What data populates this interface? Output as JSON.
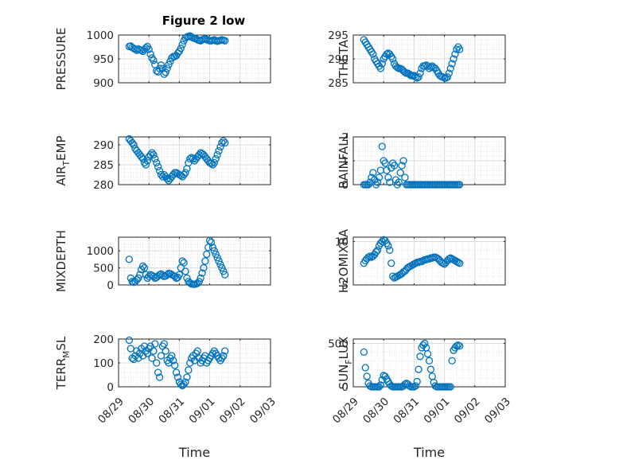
{
  "figure": {
    "title": "Figure 2 low",
    "marker_color": "#0072BD"
  },
  "chart_data": [
    {
      "type": "scatter",
      "ylabel": "PRESSURE",
      "ylim": [
        900,
        1000
      ],
      "yticks": [
        900,
        950,
        1000
      ],
      "yticklabels": [
        "900",
        "950",
        "1000"
      ],
      "grid": true,
      "xlim": [
        "08/29",
        "09/03"
      ],
      "x": [
        0.35,
        0.4,
        0.45,
        0.5,
        0.55,
        0.6,
        0.65,
        0.7,
        0.75,
        0.8,
        0.85,
        0.9,
        0.95,
        1.0,
        1.05,
        1.1,
        1.15,
        1.2,
        1.25,
        1.3,
        1.35,
        1.4,
        1.45,
        1.5,
        1.55,
        1.6,
        1.65,
        1.7,
        1.75,
        1.8,
        1.85,
        1.9,
        1.95,
        2.0,
        2.05,
        2.1,
        2.15,
        2.2,
        2.25,
        2.3,
        2.35,
        2.4,
        2.45,
        2.5,
        2.55,
        2.6,
        2.65,
        2.7,
        2.75,
        2.8,
        2.85,
        2.9,
        2.95,
        3.0,
        3.05,
        3.1,
        3.15,
        3.2,
        3.25,
        3.3,
        3.35,
        3.4,
        3.45,
        3.5
      ],
      "y": [
        976,
        977,
        974,
        972,
        970,
        968,
        971,
        969,
        968,
        966,
        970,
        973,
        976,
        970,
        960,
        952,
        947,
        938,
        925,
        923,
        930,
        937,
        930,
        918,
        922,
        930,
        938,
        945,
        952,
        955,
        955,
        957,
        962,
        966,
        972,
        980,
        988,
        994,
        996,
        997,
        998,
        996,
        994,
        993,
        992,
        990,
        989,
        988,
        990,
        991,
        992,
        991,
        989,
        988,
        988,
        989,
        990,
        988,
        987,
        988,
        989,
        990,
        989,
        988
      ]
    },
    {
      "type": "scatter",
      "ylabel": "THETA",
      "ylim": [
        285,
        295
      ],
      "yticks": [
        285,
        290,
        295
      ],
      "yticklabels": [
        "285",
        "290",
        "295"
      ],
      "grid": true,
      "xlim": [
        "08/29",
        "09/03"
      ],
      "x": [
        0.35,
        0.4,
        0.45,
        0.5,
        0.55,
        0.6,
        0.65,
        0.7,
        0.75,
        0.8,
        0.85,
        0.9,
        0.95,
        1.0,
        1.05,
        1.1,
        1.15,
        1.2,
        1.25,
        1.3,
        1.35,
        1.4,
        1.45,
        1.5,
        1.55,
        1.6,
        1.65,
        1.7,
        1.75,
        1.8,
        1.85,
        1.9,
        1.95,
        2.0,
        2.05,
        2.1,
        2.15,
        2.2,
        2.25,
        2.3,
        2.35,
        2.4,
        2.45,
        2.5,
        2.55,
        2.6,
        2.65,
        2.7,
        2.75,
        2.8,
        2.85,
        2.9,
        2.95,
        3.0,
        3.05,
        3.1,
        3.15,
        3.2,
        3.25,
        3.3,
        3.35,
        3.4,
        3.45,
        3.5
      ],
      "y": [
        294.0,
        293.5,
        293.0,
        292.5,
        292.0,
        291.5,
        291.0,
        290.0,
        289.5,
        289.0,
        288.5,
        288.0,
        289.0,
        290.0,
        290.5,
        291.0,
        291.2,
        291.0,
        290.5,
        290.0,
        289.0,
        288.5,
        288.2,
        288.0,
        288.0,
        287.8,
        287.5,
        287.2,
        287.0,
        287.0,
        286.8,
        286.5,
        286.5,
        286.5,
        286.2,
        286.0,
        286.2,
        287.0,
        288.0,
        288.5,
        288.5,
        288.7,
        288.5,
        288.0,
        288.3,
        288.5,
        288.2,
        288.0,
        287.5,
        287.0,
        286.5,
        286.3,
        286.2,
        286.0,
        286.0,
        286.2,
        287.0,
        288.0,
        289.0,
        290.0,
        291.0,
        292.0,
        292.5,
        292.0
      ]
    },
    {
      "type": "scatter",
      "ylabel": "AIR_TEMP",
      "ylim": [
        280,
        292
      ],
      "yticks": [
        280,
        285,
        290
      ],
      "yticklabels": [
        "280",
        "285",
        "290"
      ],
      "grid": true,
      "xlim": [
        "08/29",
        "09/03"
      ],
      "x": [
        0.35,
        0.4,
        0.45,
        0.5,
        0.55,
        0.6,
        0.65,
        0.7,
        0.75,
        0.8,
        0.85,
        0.9,
        0.95,
        1.0,
        1.05,
        1.1,
        1.15,
        1.2,
        1.25,
        1.3,
        1.35,
        1.4,
        1.45,
        1.5,
        1.55,
        1.6,
        1.65,
        1.7,
        1.75,
        1.8,
        1.85,
        1.9,
        1.95,
        2.0,
        2.05,
        2.1,
        2.15,
        2.2,
        2.25,
        2.3,
        2.35,
        2.4,
        2.45,
        2.5,
        2.55,
        2.6,
        2.65,
        2.7,
        2.75,
        2.8,
        2.85,
        2.9,
        2.95,
        3.0,
        3.05,
        3.1,
        3.15,
        3.2,
        3.25,
        3.3,
        3.35,
        3.4,
        3.45,
        3.5
      ],
      "y": [
        291.5,
        291.0,
        290.5,
        290.0,
        289.0,
        288.5,
        288.0,
        287.5,
        287.0,
        286.5,
        285.5,
        285.0,
        286.0,
        287.0,
        287.5,
        288.0,
        287.5,
        286.5,
        285.5,
        284.5,
        283.5,
        282.5,
        282.0,
        282.5,
        282.0,
        281.5,
        281.0,
        281.5,
        282.0,
        282.5,
        283.0,
        283.0,
        282.8,
        282.5,
        282.3,
        282.0,
        282.5,
        283.0,
        284.0,
        285.5,
        286.5,
        286.8,
        286.5,
        286.0,
        286.5,
        287.0,
        287.5,
        288.0,
        287.8,
        287.5,
        287.0,
        286.5,
        286.0,
        285.5,
        285.3,
        285.0,
        285.5,
        286.5,
        287.5,
        288.5,
        289.5,
        290.5,
        291.0,
        290.5
      ]
    },
    {
      "type": "scatter",
      "ylabel": "RAINFALL",
      "ylim": [
        0,
        2
      ],
      "yticks": [
        0,
        1,
        2
      ],
      "yticklabels": [
        "0",
        "1",
        "2"
      ],
      "grid": true,
      "xlim": [
        "08/29",
        "09/03"
      ],
      "x": [
        0.35,
        0.4,
        0.45,
        0.5,
        0.55,
        0.6,
        0.65,
        0.7,
        0.75,
        0.8,
        0.85,
        0.9,
        0.95,
        1.0,
        1.05,
        1.1,
        1.15,
        1.2,
        1.25,
        1.3,
        1.35,
        1.4,
        1.45,
        1.5,
        1.55,
        1.6,
        1.65,
        1.7,
        1.75,
        1.8,
        1.85,
        1.9,
        1.95,
        2.0,
        2.05,
        2.1,
        2.15,
        2.2,
        2.25,
        2.3,
        2.35,
        2.4,
        2.45,
        2.5,
        2.55,
        2.6,
        2.65,
        2.7,
        2.75,
        2.8,
        2.85,
        2.9,
        2.95,
        3.0,
        3.05,
        3.1,
        3.15,
        3.2,
        3.25,
        3.3,
        3.35,
        3.4,
        3.45,
        3.5
      ],
      "y": [
        0,
        0,
        0,
        0,
        0.1,
        0.3,
        0.5,
        0.2,
        0,
        0.1,
        0.3,
        0.6,
        1.6,
        1.0,
        0.9,
        0.6,
        0.3,
        0.1,
        0.7,
        0.9,
        0.8,
        0.2,
        0,
        0.1,
        0.5,
        0.8,
        1.0,
        0.3,
        0,
        0,
        0,
        0,
        0,
        0,
        0,
        0,
        0,
        0,
        0,
        0,
        0,
        0,
        0,
        0,
        0,
        0,
        0,
        0,
        0,
        0,
        0,
        0,
        0,
        0,
        0,
        0,
        0,
        0,
        0,
        0,
        0,
        0,
        0,
        0
      ]
    },
    {
      "type": "scatter",
      "ylabel": "MIXDEPTH",
      "ylim": [
        0,
        1400
      ],
      "yticks": [
        0,
        500,
        1000
      ],
      "yticklabels": [
        "0",
        "500",
        "1000"
      ],
      "grid": true,
      "xlim": [
        "08/29",
        "09/03"
      ],
      "x": [
        0.35,
        0.4,
        0.45,
        0.5,
        0.55,
        0.6,
        0.65,
        0.7,
        0.75,
        0.8,
        0.85,
        0.9,
        0.95,
        1.0,
        1.05,
        1.1,
        1.15,
        1.2,
        1.25,
        1.3,
        1.35,
        1.4,
        1.45,
        1.5,
        1.55,
        1.6,
        1.65,
        1.7,
        1.75,
        1.8,
        1.85,
        1.9,
        1.95,
        2.0,
        2.05,
        2.1,
        2.15,
        2.2,
        2.25,
        2.3,
        2.35,
        2.4,
        2.45,
        2.5,
        2.55,
        2.6,
        2.65,
        2.7,
        2.75,
        2.8,
        2.85,
        2.9,
        2.95,
        3.0,
        3.05,
        3.1,
        3.15,
        3.2,
        3.25,
        3.3,
        3.35,
        3.4,
        3.45,
        3.5
      ],
      "y": [
        750,
        200,
        100,
        80,
        100,
        150,
        200,
        300,
        450,
        550,
        500,
        300,
        200,
        250,
        300,
        280,
        250,
        200,
        220,
        260,
        300,
        320,
        280,
        250,
        260,
        300,
        340,
        330,
        300,
        280,
        250,
        200,
        220,
        300,
        500,
        700,
        650,
        400,
        200,
        100,
        60,
        30,
        20,
        20,
        30,
        50,
        100,
        200,
        350,
        500,
        700,
        900,
        1100,
        1300,
        1250,
        1100,
        1000,
        900,
        800,
        700,
        600,
        500,
        400,
        300
      ]
    },
    {
      "type": "scatter",
      "ylabel": "H2OMIXRA",
      "ylim": [
        5,
        10.5
      ],
      "yticks": [
        5,
        10
      ],
      "yticklabels": [
        "5",
        "10"
      ],
      "grid": true,
      "xlim": [
        "08/29",
        "09/03"
      ],
      "x": [
        0.35,
        0.4,
        0.45,
        0.5,
        0.55,
        0.6,
        0.65,
        0.7,
        0.75,
        0.8,
        0.85,
        0.9,
        0.95,
        1.0,
        1.05,
        1.1,
        1.15,
        1.2,
        1.25,
        1.3,
        1.35,
        1.4,
        1.45,
        1.5,
        1.55,
        1.6,
        1.65,
        1.7,
        1.75,
        1.8,
        1.85,
        1.9,
        1.95,
        2.0,
        2.05,
        2.1,
        2.15,
        2.2,
        2.25,
        2.3,
        2.35,
        2.4,
        2.45,
        2.5,
        2.55,
        2.6,
        2.65,
        2.7,
        2.75,
        2.8,
        2.85,
        2.9,
        2.95,
        3.0,
        3.05,
        3.1,
        3.15,
        3.2,
        3.25,
        3.3,
        3.35,
        3.4,
        3.45,
        3.5
      ],
      "y": [
        7.5,
        7.8,
        8.0,
        8.2,
        8.3,
        8.2,
        8.3,
        8.5,
        8.8,
        9.0,
        9.5,
        9.8,
        10.0,
        10.2,
        10.1,
        9.8,
        9.5,
        9.0,
        7.5,
        6.0,
        5.8,
        5.9,
        6.0,
        6.1,
        6.2,
        6.3,
        6.5,
        6.6,
        6.8,
        7.0,
        7.1,
        7.2,
        7.3,
        7.4,
        7.5,
        7.6,
        7.6,
        7.7,
        7.7,
        7.8,
        7.9,
        7.9,
        8.0,
        8.0,
        8.1,
        8.1,
        8.2,
        8.2,
        8.1,
        8.0,
        7.8,
        7.6,
        7.5,
        7.4,
        7.6,
        7.8,
        8.0,
        8.1,
        8.0,
        7.9,
        7.8,
        7.7,
        7.6,
        7.5
      ]
    },
    {
      "type": "scatter",
      "ylabel": "TERR_MSL",
      "ylim": [
        0,
        200
      ],
      "yticks": [
        0,
        100,
        200
      ],
      "yticklabels": [
        "0",
        "100",
        "200"
      ],
      "grid": true,
      "xlim": [
        "08/29",
        "09/03"
      ],
      "x": [
        0.35,
        0.4,
        0.45,
        0.5,
        0.55,
        0.6,
        0.65,
        0.7,
        0.75,
        0.8,
        0.85,
        0.9,
        0.95,
        1.0,
        1.05,
        1.1,
        1.15,
        1.2,
        1.25,
        1.3,
        1.35,
        1.4,
        1.45,
        1.5,
        1.55,
        1.6,
        1.65,
        1.7,
        1.75,
        1.8,
        1.85,
        1.9,
        1.95,
        2.0,
        2.05,
        2.1,
        2.15,
        2.2,
        2.25,
        2.3,
        2.35,
        2.4,
        2.45,
        2.5,
        2.55,
        2.6,
        2.65,
        2.7,
        2.75,
        2.8,
        2.85,
        2.9,
        2.95,
        3.0,
        3.05,
        3.1,
        3.15,
        3.2,
        3.25,
        3.3,
        3.35,
        3.4,
        3.45,
        3.5
      ],
      "y": [
        195,
        160,
        120,
        115,
        130,
        150,
        120,
        140,
        160,
        130,
        170,
        150,
        140,
        160,
        170,
        120,
        150,
        180,
        100,
        60,
        40,
        130,
        170,
        180,
        150,
        110,
        100,
        120,
        130,
        110,
        90,
        60,
        40,
        20,
        10,
        5,
        10,
        20,
        40,
        70,
        100,
        120,
        130,
        110,
        140,
        150,
        120,
        100,
        110,
        120,
        130,
        100,
        110,
        120,
        130,
        140,
        150,
        140,
        130,
        120,
        110,
        120,
        130,
        150
      ]
    },
    {
      "type": "scatter",
      "ylabel": "SUN_FLUX",
      "ylim": [
        0,
        550
      ],
      "yticks": [
        0,
        500
      ],
      "yticklabels": [
        "0",
        "500"
      ],
      "grid": true,
      "xlim": [
        "08/29",
        "09/03"
      ],
      "x": [
        0.35,
        0.4,
        0.45,
        0.5,
        0.55,
        0.6,
        0.65,
        0.7,
        0.75,
        0.8,
        0.85,
        0.9,
        0.95,
        1.0,
        1.05,
        1.1,
        1.15,
        1.2,
        1.25,
        1.3,
        1.35,
        1.4,
        1.45,
        1.5,
        1.55,
        1.6,
        1.65,
        1.7,
        1.75,
        1.8,
        1.85,
        1.9,
        1.95,
        2.0,
        2.05,
        2.1,
        2.15,
        2.2,
        2.25,
        2.3,
        2.35,
        2.4,
        2.45,
        2.5,
        2.55,
        2.6,
        2.65,
        2.7,
        2.75,
        2.8,
        2.85,
        2.9,
        2.95,
        3.0,
        3.05,
        3.1,
        3.15,
        3.2,
        3.25,
        3.3,
        3.35,
        3.4,
        3.45,
        3.5
      ],
      "y": [
        400,
        220,
        120,
        40,
        10,
        0,
        0,
        0,
        0,
        0,
        0,
        20,
        80,
        130,
        120,
        90,
        60,
        30,
        10,
        0,
        0,
        0,
        0,
        0,
        0,
        0,
        10,
        30,
        40,
        30,
        10,
        0,
        0,
        0,
        10,
        60,
        200,
        350,
        450,
        480,
        500,
        450,
        380,
        300,
        200,
        120,
        50,
        10,
        0,
        0,
        0,
        0,
        0,
        0,
        0,
        0,
        0,
        0,
        300,
        420,
        450,
        470,
        480,
        470
      ]
    }
  ],
  "xaxis": {
    "ticks": [
      0,
      1,
      2,
      3,
      4,
      5
    ],
    "ticklabels": [
      "08/29",
      "08/30",
      "08/31",
      "09/01",
      "09/02",
      "09/03"
    ],
    "xlabel": "Time"
  }
}
